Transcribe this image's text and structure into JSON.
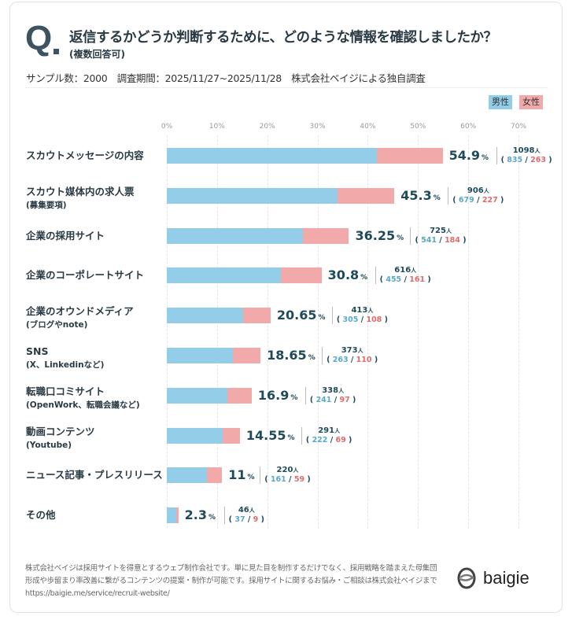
{
  "header": {
    "q_mark": "Q",
    "title": "返信するかどうか判断するために、どのような情報を確認しましたか？",
    "subtitle": "(複数回答可)",
    "meta": "サンプル数：2000　調査期間：2025/11/27~2025/11/28　株式会社ベイジによる独自調査"
  },
  "colors": {
    "male": "#93cde8",
    "female": "#f2a9a9",
    "male_text": "#5aa8c8",
    "female_text": "#e06a6a",
    "value_text": "#1e4a5a"
  },
  "chart_data": {
    "type": "bar",
    "stacked": true,
    "orientation": "horizontal",
    "xlim": [
      0,
      70
    ],
    "x_ticks": [
      "0%",
      "10%",
      "20%",
      "30%",
      "40%",
      "50%",
      "60%",
      "70%"
    ],
    "grid": true,
    "legend_placement": "top-right",
    "series": [
      {
        "name": "男性"
      },
      {
        "name": "女性"
      }
    ],
    "unit_people": "人",
    "categories": [
      {
        "label": "スカウトメッセージの内容",
        "sub": "",
        "pct": "54.9",
        "total": "1098",
        "male": 835,
        "female": 263
      },
      {
        "label": "スカウト媒体内の求人票",
        "sub": "(募集要項)",
        "pct": "45.3",
        "total": "906",
        "male": 679,
        "female": 227
      },
      {
        "label": "企業の採用サイト",
        "sub": "",
        "pct": "36.25",
        "total": "725",
        "male": 541,
        "female": 184
      },
      {
        "label": "企業のコーポレートサイト",
        "sub": "",
        "pct": "30.8",
        "total": "616",
        "male": 455,
        "female": 161
      },
      {
        "label": "企業のオウンドメディア",
        "sub": "(ブログやnote)",
        "pct": "20.65",
        "total": "413",
        "male": 305,
        "female": 108
      },
      {
        "label": "SNS",
        "sub": "(X、Linkedinなど)",
        "pct": "18.65",
        "total": "373",
        "male": 263,
        "female": 110
      },
      {
        "label": "転職口コミサイト",
        "sub": "(OpenWork、転職会議など)",
        "pct": "16.9",
        "total": "338",
        "male": 241,
        "female": 97
      },
      {
        "label": "動画コンテンツ",
        "sub": "(Youtube)",
        "pct": "14.55",
        "total": "291",
        "male": 222,
        "female": 69
      },
      {
        "label": "ニュース記事・プレスリリース",
        "sub": "",
        "pct": "11",
        "total": "220",
        "male": 161,
        "female": 59
      },
      {
        "label": "その他",
        "sub": "",
        "pct": "2.3",
        "total": "46",
        "male": 37,
        "female": 9
      }
    ]
  },
  "footer": {
    "text": "株式会社ベイジは採用サイトを得意とするウェブ制作会社です。単に見た目を制作するだけでなく、採用戦略を踏まえた母集団形成や歩留まり率改善に繋がるコンテンツの提案・制作が可能です。採用サイトに関するお悩み・ご相談は株式会社ベイジまで",
    "url": "https://baigie.me/service/recruit-website/",
    "logo_text": "baigie"
  }
}
